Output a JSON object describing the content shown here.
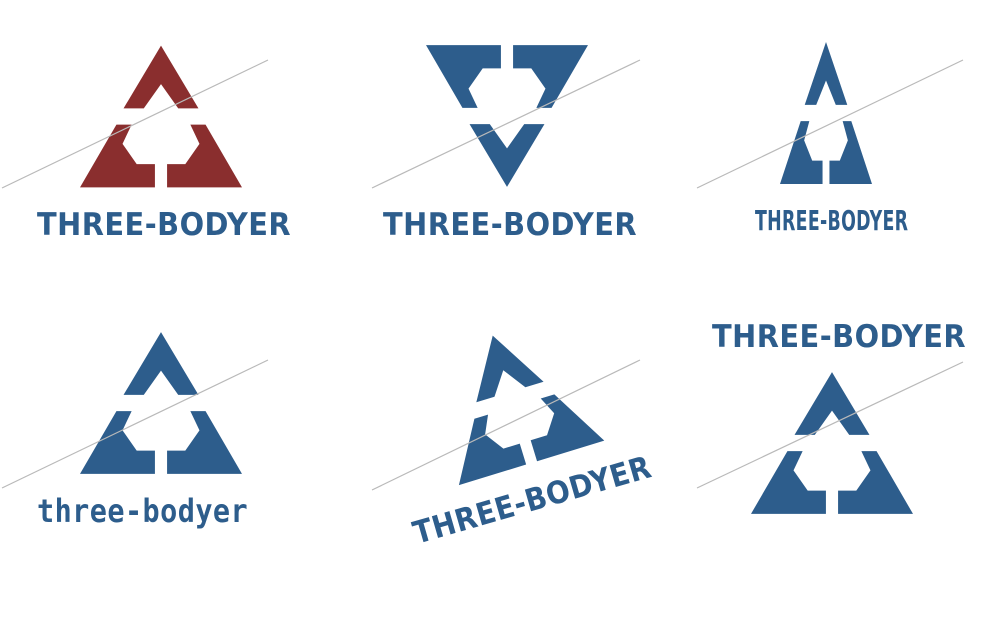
{
  "colors": {
    "primary": "#2d5d8c",
    "accent": "#8a2e2e",
    "strike_line": "#b9b9b9"
  },
  "icons": {
    "emblem": "three-chevron-triangle-icon",
    "inverted_emblem": "inverted-three-chevron-triangle-icon"
  },
  "variants": [
    {
      "wordmark": "THREE-BODYER"
    },
    {
      "wordmark": "THREE-BODYER"
    },
    {
      "wordmark": "THREE-BODYER"
    },
    {
      "wordmark": "three-bodyer"
    },
    {
      "wordmark": "THREE-BODYER"
    },
    {
      "wordmark": "THREE-BODYER"
    }
  ]
}
